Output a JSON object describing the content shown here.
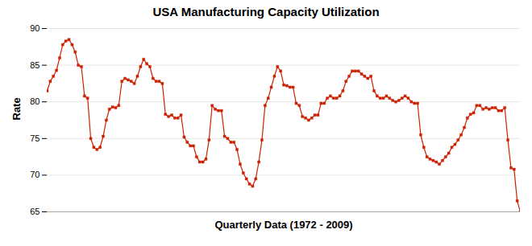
{
  "chart_data": {
    "type": "line",
    "title": "USA Manufacturing Capacity Utilization",
    "xlabel": "Quarterly Data (1972 - 2009)",
    "ylabel": "Rate",
    "categories": [
      null,
      null,
      null,
      null,
      null,
      null,
      null,
      null,
      null,
      null,
      null,
      null,
      null,
      null,
      null,
      null,
      null,
      null,
      null,
      null,
      null,
      null,
      null,
      null,
      null,
      null,
      null,
      null,
      null,
      null,
      null,
      null,
      null,
      null,
      null,
      null,
      null,
      null,
      null,
      null,
      null,
      null,
      null,
      null,
      null,
      null,
      null,
      null,
      null,
      null,
      null,
      null,
      null,
      null,
      null,
      null,
      null,
      null,
      null,
      null,
      null,
      null,
      null,
      null,
      null,
      null,
      null,
      null,
      null,
      null,
      null,
      null,
      null,
      null,
      null,
      null,
      null,
      null,
      null,
      null,
      null,
      null,
      null,
      null,
      null,
      null,
      null,
      null,
      null,
      null,
      null,
      null,
      null,
      null,
      null,
      null,
      null,
      null,
      null,
      null,
      null,
      null,
      null,
      null,
      null,
      null,
      null,
      null,
      null,
      null,
      null,
      null,
      null,
      null,
      null,
      null,
      null,
      null,
      null,
      null,
      null,
      null,
      null,
      null,
      null,
      null,
      null,
      null,
      null,
      null,
      null,
      null,
      null,
      null,
      null,
      null,
      null,
      null,
      null,
      null,
      null,
      null,
      null,
      null,
      null,
      null,
      null,
      null,
      null,
      null,
      null,
      null,
      null
    ],
    "values": [
      81.5,
      82.8,
      83.5,
      84.3,
      86.0,
      87.8,
      88.3,
      88.5,
      87.8,
      86.8,
      85.0,
      84.8,
      80.8,
      80.5,
      75.0,
      73.8,
      73.5,
      73.8,
      75.3,
      77.5,
      79.0,
      79.3,
      79.2,
      79.5,
      82.8,
      83.2,
      83.0,
      82.8,
      82.5,
      83.5,
      84.8,
      85.8,
      85.2,
      84.8,
      83.2,
      82.8,
      82.8,
      82.5,
      78.3,
      78.0,
      78.2,
      77.8,
      77.8,
      78.2,
      75.2,
      74.5,
      74.0,
      74.0,
      72.5,
      71.8,
      71.8,
      72.2,
      74.8,
      79.5,
      79.0,
      78.8,
      78.8,
      75.3,
      75.0,
      74.5,
      74.5,
      73.5,
      71.5,
      70.3,
      69.5,
      68.8,
      68.5,
      69.5,
      71.8,
      74.8,
      79.5,
      80.5,
      82.0,
      83.5,
      84.8,
      84.2,
      82.3,
      82.2,
      82.0,
      82.0,
      79.8,
      79.5,
      78.0,
      77.8,
      77.5,
      77.8,
      78.2,
      78.2,
      79.8,
      79.8,
      80.5,
      80.8,
      80.5,
      80.5,
      80.8,
      81.5,
      82.8,
      83.5,
      84.2,
      84.2,
      84.2,
      83.8,
      83.5,
      83.2,
      83.5,
      81.5,
      80.8,
      80.5,
      80.5,
      80.8,
      80.5,
      80.2,
      80.0,
      80.2,
      80.5,
      80.8,
      80.5,
      80.0,
      79.8,
      79.8,
      75.5,
      73.8,
      72.5,
      72.2,
      72.0,
      71.8,
      71.5,
      72.0,
      72.5,
      73.0,
      73.8,
      74.2,
      74.8,
      75.5,
      76.5,
      77.8,
      78.3,
      78.5,
      79.5,
      79.5,
      79.0,
      79.2,
      79.0,
      79.2,
      79.2,
      78.8,
      78.8,
      79.2,
      74.8,
      71.0,
      70.8,
      66.5,
      65.0
    ],
    "color": "#cc2200",
    "marker": "square",
    "ylim": [
      65,
      90
    ],
    "yticks": [
      65,
      70,
      75,
      80,
      85,
      90
    ],
    "grid": true,
    "tick_labels": "y"
  }
}
